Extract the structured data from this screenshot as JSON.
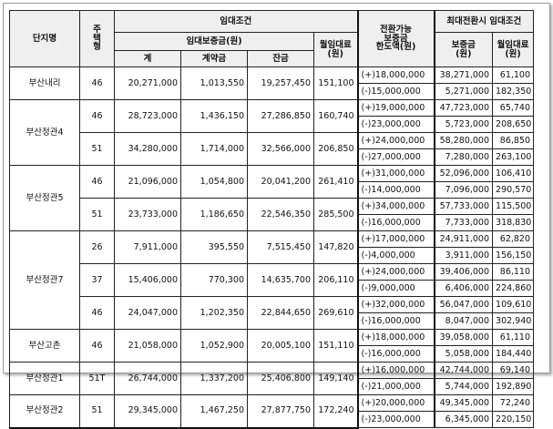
{
  "headers": {
    "complex": "단지명",
    "unit_type": "주\n택\n형",
    "rental_terms": "임대조건",
    "deposit": "임대보증금(원)",
    "total": "계",
    "contract": "계약금",
    "balance": "잔금",
    "monthly_rent": "월임대료\n(원)",
    "conversion_limit": "전환가능\n보증금\n한도액(원)",
    "max_conversion": "최대전환시  임대조건",
    "max_deposit": "보증금\n(원)",
    "max_rent": "월임대료\n(원)"
  },
  "groups": [
    {
      "complex": "부산내리",
      "rows": [
        {
          "type": "46",
          "total": "20,271,000",
          "contract": "1,013,550",
          "balance": "19,257,450",
          "rent": "151,100",
          "conv": [
            "(+)18,000,000",
            "(-)15,000,000"
          ],
          "dep": [
            "38,271,000",
            "5,271,000"
          ],
          "mrent": [
            "61,100",
            "182,350"
          ]
        }
      ]
    },
    {
      "complex": "부산정관4",
      "rows": [
        {
          "type": "46",
          "total": "28,723,000",
          "contract": "1,436,150",
          "balance": "27,286,850",
          "rent": "160,740",
          "conv": [
            "(+)19,000,000",
            "(-)23,000,000"
          ],
          "dep": [
            "47,723,000",
            "5,723,000"
          ],
          "mrent": [
            "65,740",
            "208,650"
          ]
        },
        {
          "type": "51",
          "total": "34,280,000",
          "contract": "1,714,000",
          "balance": "32,566,000",
          "rent": "206,850",
          "conv": [
            "(+)24,000,000",
            "(-)27,000,000"
          ],
          "dep": [
            "58,280,000",
            "7,280,000"
          ],
          "mrent": [
            "86,850",
            "263,100"
          ]
        }
      ]
    },
    {
      "complex": "부산정관5",
      "rows": [
        {
          "type": "46",
          "total": "21,096,000",
          "contract": "1,054,800",
          "balance": "20,041,200",
          "rent": "261,410",
          "conv": [
            "(+)31,000,000",
            "(-)14,000,000"
          ],
          "dep": [
            "52,096,000",
            "7,096,000"
          ],
          "mrent": [
            "106,410",
            "290,570"
          ]
        },
        {
          "type": "51",
          "total": "23,733,000",
          "contract": "1,186,650",
          "balance": "22,546,350",
          "rent": "285,500",
          "conv": [
            "(+)34,000,000",
            "(-)16,000,000"
          ],
          "dep": [
            "57,733,000",
            "7,733,000"
          ],
          "mrent": [
            "115,500",
            "318,830"
          ]
        }
      ]
    },
    {
      "complex": "부산정관7",
      "rows": [
        {
          "type": "26",
          "total": "7,911,000",
          "contract": "395,550",
          "balance": "7,515,450",
          "rent": "147,820",
          "conv": [
            "(+)17,000,000",
            "(-)4,000,000"
          ],
          "dep": [
            "24,911,000",
            "3,911,000"
          ],
          "mrent": [
            "62,820",
            "156,150"
          ]
        },
        {
          "type": "37",
          "total": "15,406,000",
          "contract": "770,300",
          "balance": "14,635,700",
          "rent": "206,110",
          "conv": [
            "(+)24,000,000",
            "(-)9,000,000"
          ],
          "dep": [
            "39,406,000",
            "6,406,000"
          ],
          "mrent": [
            "86,110",
            "224,860"
          ]
        },
        {
          "type": "46",
          "total": "24,047,000",
          "contract": "1,202,350",
          "balance": "22,844,650",
          "rent": "269,610",
          "conv": [
            "(+)32,000,000",
            "(-)16,000,000"
          ],
          "dep": [
            "56,047,000",
            "8,047,000"
          ],
          "mrent": [
            "109,610",
            "302,940"
          ]
        }
      ]
    },
    {
      "complex": "부산고촌",
      "rows": [
        {
          "type": "46",
          "total": "21,058,000",
          "contract": "1,052,900",
          "balance": "20,005,100",
          "rent": "151,110",
          "conv": [
            "(+)18,000,000",
            "(-)16,000,000"
          ],
          "dep": [
            "39,058,000",
            "5,058,000"
          ],
          "mrent": [
            "61,110",
            "184,440"
          ]
        }
      ]
    },
    {
      "complex": "부산정관1",
      "rows": [
        {
          "type": "51T",
          "total": "26,744,000",
          "contract": "1,337,200",
          "balance": "25,406,800",
          "rent": "149,140",
          "conv": [
            "(+)16,000,000",
            "(-)21,000,000"
          ],
          "dep": [
            "42,744,000",
            "5,744,000"
          ],
          "mrent": [
            "69,140",
            "192,890"
          ]
        }
      ]
    },
    {
      "complex": "부산정관2",
      "rows": [
        {
          "type": "51",
          "total": "29,345,000",
          "contract": "1,467,250",
          "balance": "27,877,750",
          "rent": "172,240",
          "conv": [
            "(+)20,000,000",
            "(-)23,000,000"
          ],
          "dep": [
            "49,345,000",
            "6,345,000"
          ],
          "mrent": [
            "72,240",
            "220,150"
          ]
        }
      ]
    }
  ]
}
